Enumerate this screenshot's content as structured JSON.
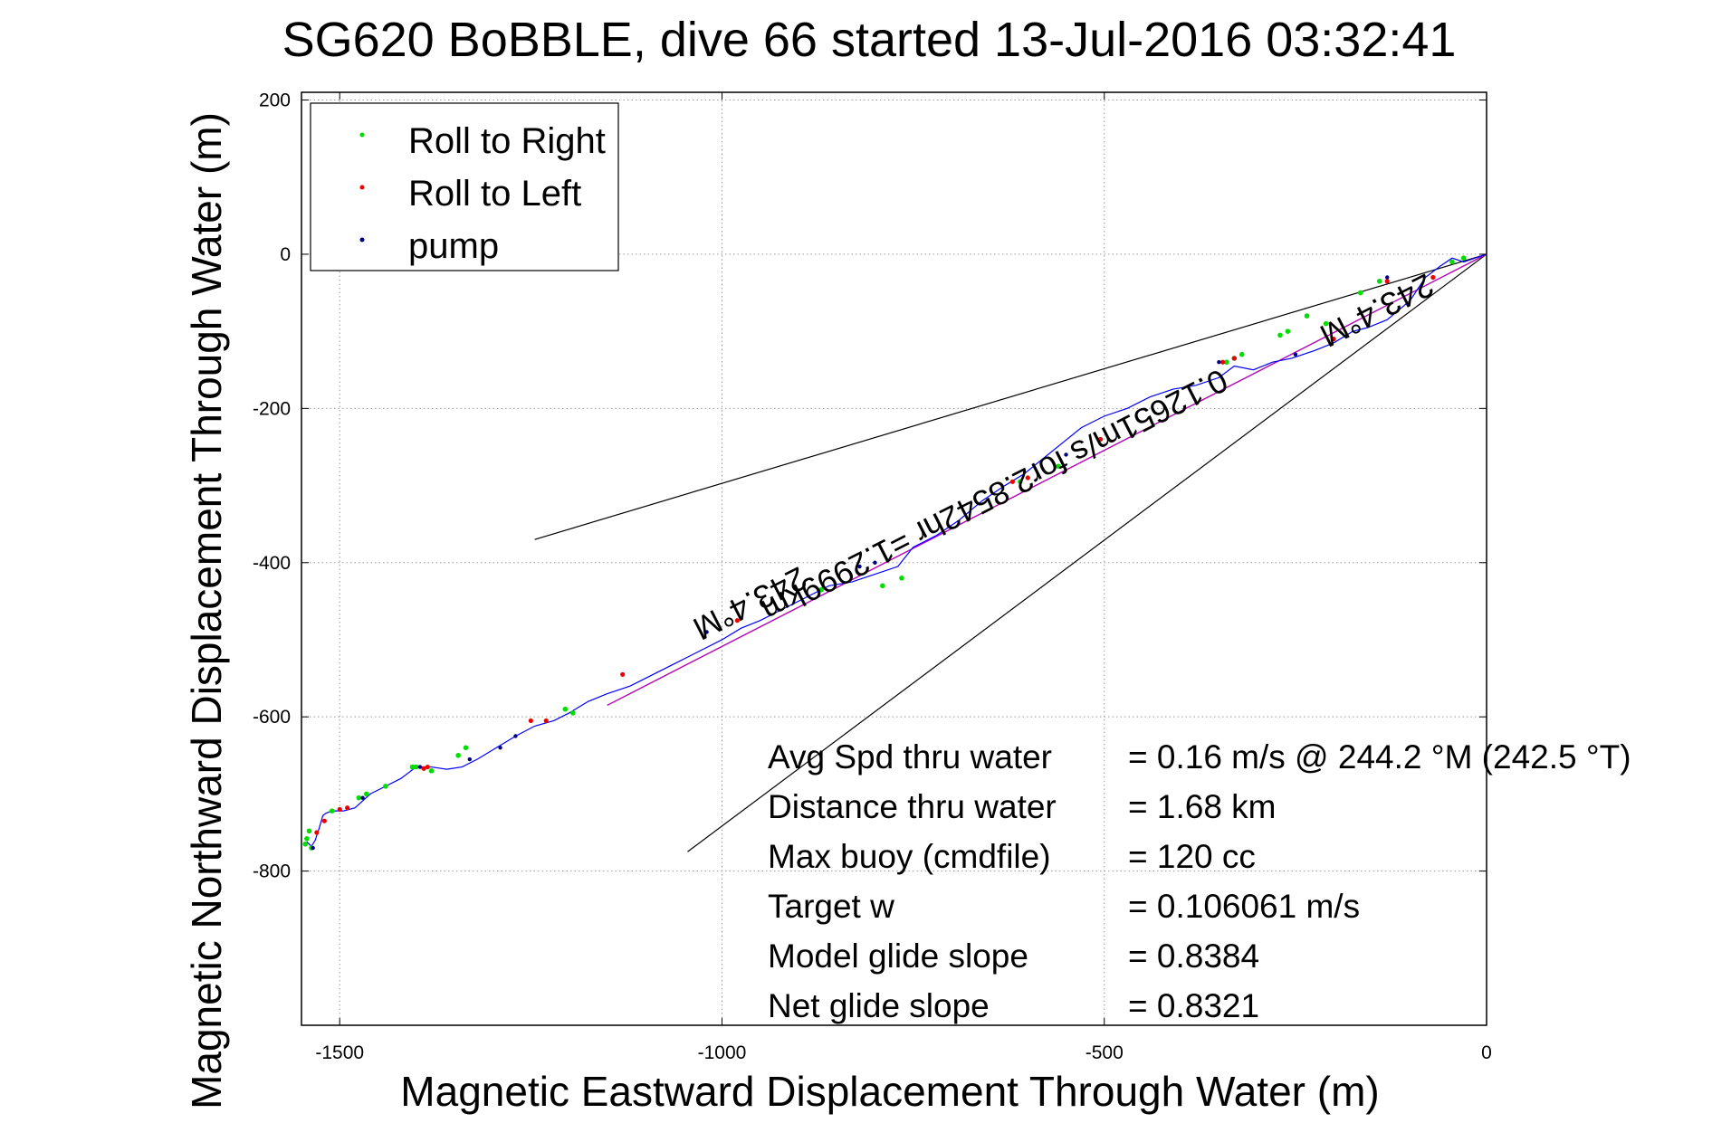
{
  "chart_data": {
    "type": "line",
    "title": "SG620 BoBBLE, dive 66 started 13-Jul-2016 03:32:41",
    "xlabel": "Magnetic Eastward Displacement Through Water (m)",
    "ylabel": "Magnetic Northward Displacement Through Water (m)",
    "xlim": [
      -1550,
      0
    ],
    "ylim": [
      -1000,
      210
    ],
    "xticks": [
      -1500,
      -1000,
      -500,
      0
    ],
    "yticks": [
      200,
      0,
      -200,
      -400,
      -600,
      -800
    ],
    "grid": true,
    "legend_position": "top-left",
    "legend": [
      {
        "label": "Roll to Right",
        "color": "#00dd00"
      },
      {
        "label": "Roll to Left",
        "color": "#ee0000"
      },
      {
        "label": "pump",
        "color": "#000080"
      }
    ],
    "colors": {
      "track": "#0000ff",
      "course": "#cc00cc",
      "bounds": "#000000",
      "roll_right": "#00dd00",
      "roll_left": "#ee0000",
      "pump": "#000080"
    },
    "series": [
      {
        "x": [
          0,
          -15,
          -30,
          -45,
          -60,
          -80,
          -100,
          -130,
          -155,
          -175,
          -200,
          -225,
          -255,
          -280,
          -305,
          -330,
          -350,
          -380,
          -410,
          -440,
          -470,
          -500,
          -530,
          -555,
          -580,
          -605,
          -630,
          -660,
          -690,
          -720,
          -750,
          -770,
          -800,
          -830,
          -860,
          -890,
          -920,
          -950,
          -975,
          -1000,
          -1030,
          -1060,
          -1090,
          -1120,
          -1150,
          -1175,
          -1200,
          -1220,
          -1245,
          -1270,
          -1295,
          -1320,
          -1340,
          -1360,
          -1380,
          -1400,
          -1420,
          -1440,
          -1460,
          -1480,
          -1495,
          -1510,
          -1518,
          -1522,
          -1527,
          -1532,
          -1537,
          -1543
        ],
        "y": [
          0,
          -5,
          -10,
          -5,
          -15,
          -30,
          -60,
          -85,
          -95,
          -100,
          -115,
          -125,
          -135,
          -140,
          -150,
          -145,
          -160,
          -170,
          -175,
          -185,
          -200,
          -210,
          -225,
          -245,
          -265,
          -285,
          -300,
          -320,
          -345,
          -365,
          -380,
          -405,
          -415,
          -425,
          -430,
          -445,
          -460,
          -475,
          -485,
          -500,
          -515,
          -530,
          -545,
          -560,
          -570,
          -580,
          -595,
          -605,
          -612,
          -625,
          -640,
          -655,
          -665,
          -668,
          -665,
          -665,
          -680,
          -690,
          -700,
          -718,
          -722,
          -722,
          -725,
          -728,
          -745,
          -760,
          -768,
          -762
        ]
      }
    ],
    "reference_lines": [
      {
        "x": [
          0,
          -1150
        ],
        "y": [
          0,
          -585
        ]
      },
      {
        "x": [
          0,
          -1245
        ],
        "y": [
          0,
          -370
        ]
      },
      {
        "x": [
          0,
          -1045
        ],
        "y": [
          0,
          -775
        ]
      }
    ],
    "roll_right_points": {
      "x": [
        -30,
        -45,
        -140,
        -165,
        -210,
        -235,
        -260,
        -270,
        -320,
        -330,
        -340,
        -560,
        -610,
        -765,
        -790,
        -870,
        -1195,
        -1205,
        -1335,
        -1345,
        -1380,
        -1400,
        -1405,
        -1440,
        -1465,
        -1475,
        -1510,
        -1540,
        -1543,
        -1545,
        -1537
      ],
      "y": [
        -5,
        -10,
        -35,
        -50,
        -90,
        -80,
        -100,
        -105,
        -130,
        -135,
        -140,
        -275,
        -295,
        -420,
        -430,
        -435,
        -595,
        -590,
        -640,
        -650,
        -670,
        -665,
        -665,
        -690,
        -700,
        -705,
        -722,
        -748,
        -758,
        -765,
        -770
      ]
    },
    "roll_left_points": {
      "x": [
        -70,
        -130,
        -200,
        -330,
        -345,
        -505,
        -600,
        -620,
        -980,
        -1130,
        -1230,
        -1250,
        -1385,
        -1390,
        -1490,
        -1500,
        -1520,
        -1530
      ],
      "y": [
        -30,
        -35,
        -110,
        -135,
        -140,
        -240,
        -290,
        -295,
        -475,
        -545,
        -605,
        -605,
        -665,
        -667,
        -718,
        -720,
        -735,
        -750
      ]
    },
    "pump_points": {
      "x": [
        -130,
        -250,
        -350,
        -550,
        -800,
        -820,
        -1020,
        -1270,
        -1290,
        -1330,
        -1395,
        -1470,
        -1535
      ],
      "y": [
        -30,
        -130,
        -140,
        -260,
        -400,
        -405,
        -490,
        -625,
        -640,
        -655,
        -665,
        -705,
        -770
      ]
    },
    "annotations": [
      {
        "text": "243.4°M",
        "x": -150,
        "y": -60
      },
      {
        "text": "0.12651m/s for2.8542hr =1.2999km",
        "x": -650,
        "y": -300
      },
      {
        "text": "243.4°M",
        "x": -970,
        "y": -440
      }
    ],
    "stats": [
      {
        "label": "Avg Spd thru water",
        "value": "=  0.16 m/s @ 244.2 °M (242.5 °T)"
      },
      {
        "label": "Distance thru water",
        "value": "=  1.68 km"
      },
      {
        "label": "Max buoy (cmdfile)",
        "value": "= 120 cc"
      },
      {
        "label": "Target w",
        "value": "= 0.106061 m/s"
      },
      {
        "label": "Model glide slope",
        "value": "= 0.8384"
      },
      {
        "label": "Net glide slope",
        "value": "= 0.8321"
      }
    ]
  }
}
